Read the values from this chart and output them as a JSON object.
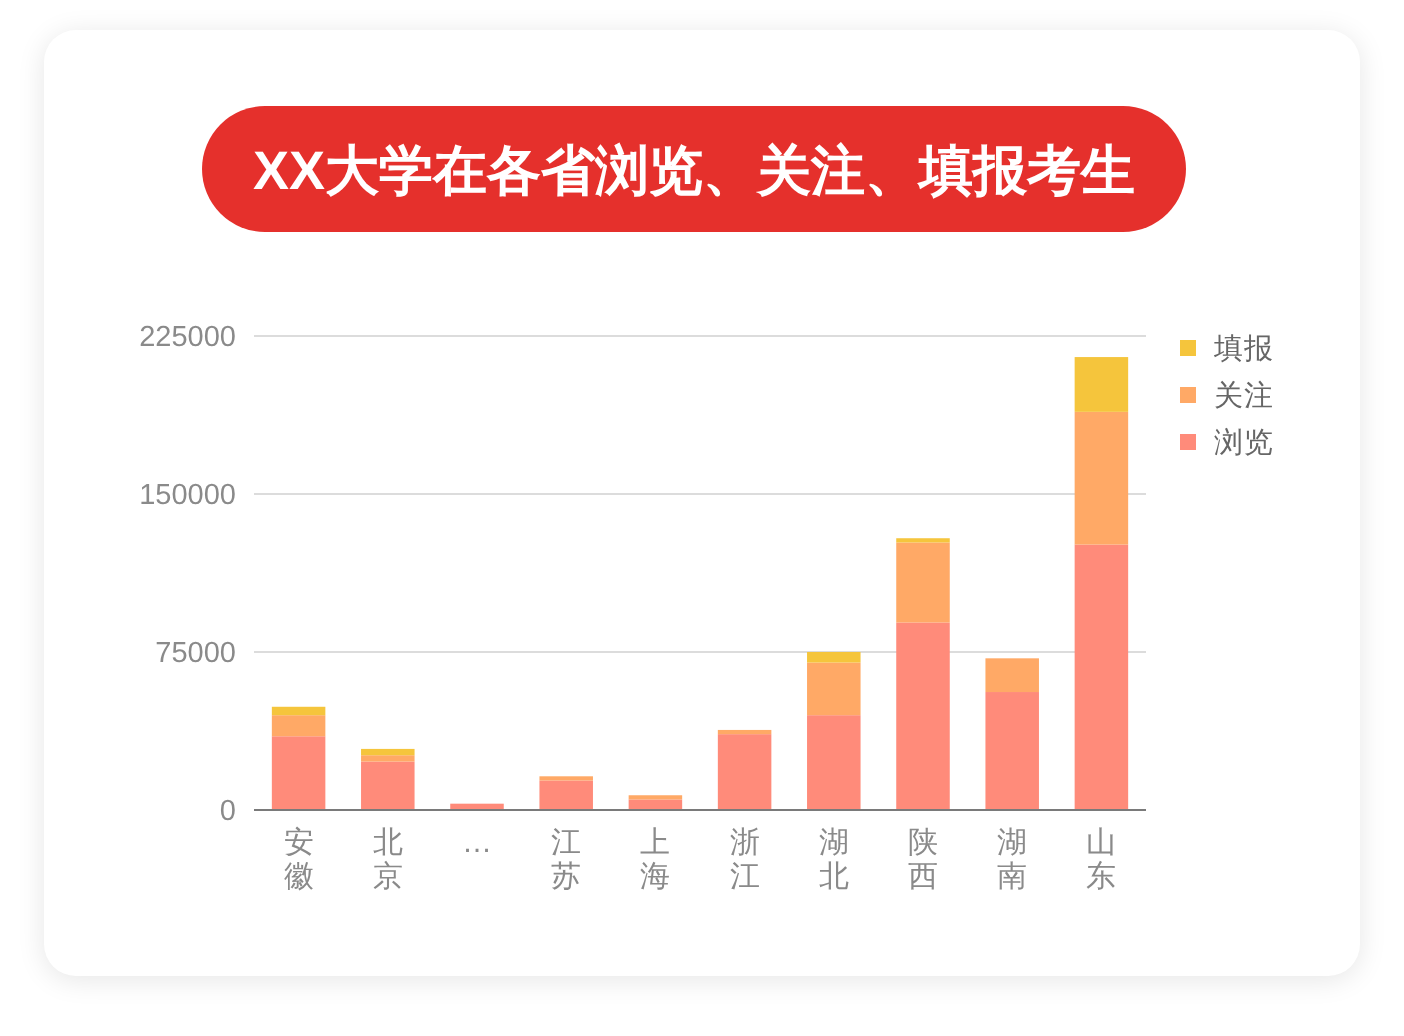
{
  "chart_data": {
    "type": "bar",
    "title": "XX大学在各省浏览、关注、填报考生",
    "categories": [
      "安徽",
      "北京",
      "…",
      "江苏",
      "上海",
      "浙江",
      "湖北",
      "陕西",
      "湖南",
      "山东"
    ],
    "series": [
      {
        "name": "浏览",
        "color": "#ff8b7a",
        "values": [
          35000,
          23000,
          3000,
          14000,
          5000,
          36000,
          45000,
          89000,
          56000,
          126000
        ]
      },
      {
        "name": "关注",
        "color": "#ffa966",
        "values": [
          10000,
          3000,
          0,
          2000,
          2000,
          2000,
          25000,
          38000,
          16000,
          63000
        ]
      },
      {
        "name": "填报",
        "color": "#f5c53c",
        "values": [
          4000,
          3000,
          0,
          0,
          0,
          0,
          5000,
          2000,
          0,
          26000
        ]
      }
    ],
    "stacked": true,
    "ylim": [
      0,
      225000
    ],
    "yticks": [
      0,
      75000,
      150000,
      225000
    ],
    "grid": "y",
    "legend": "top right"
  }
}
